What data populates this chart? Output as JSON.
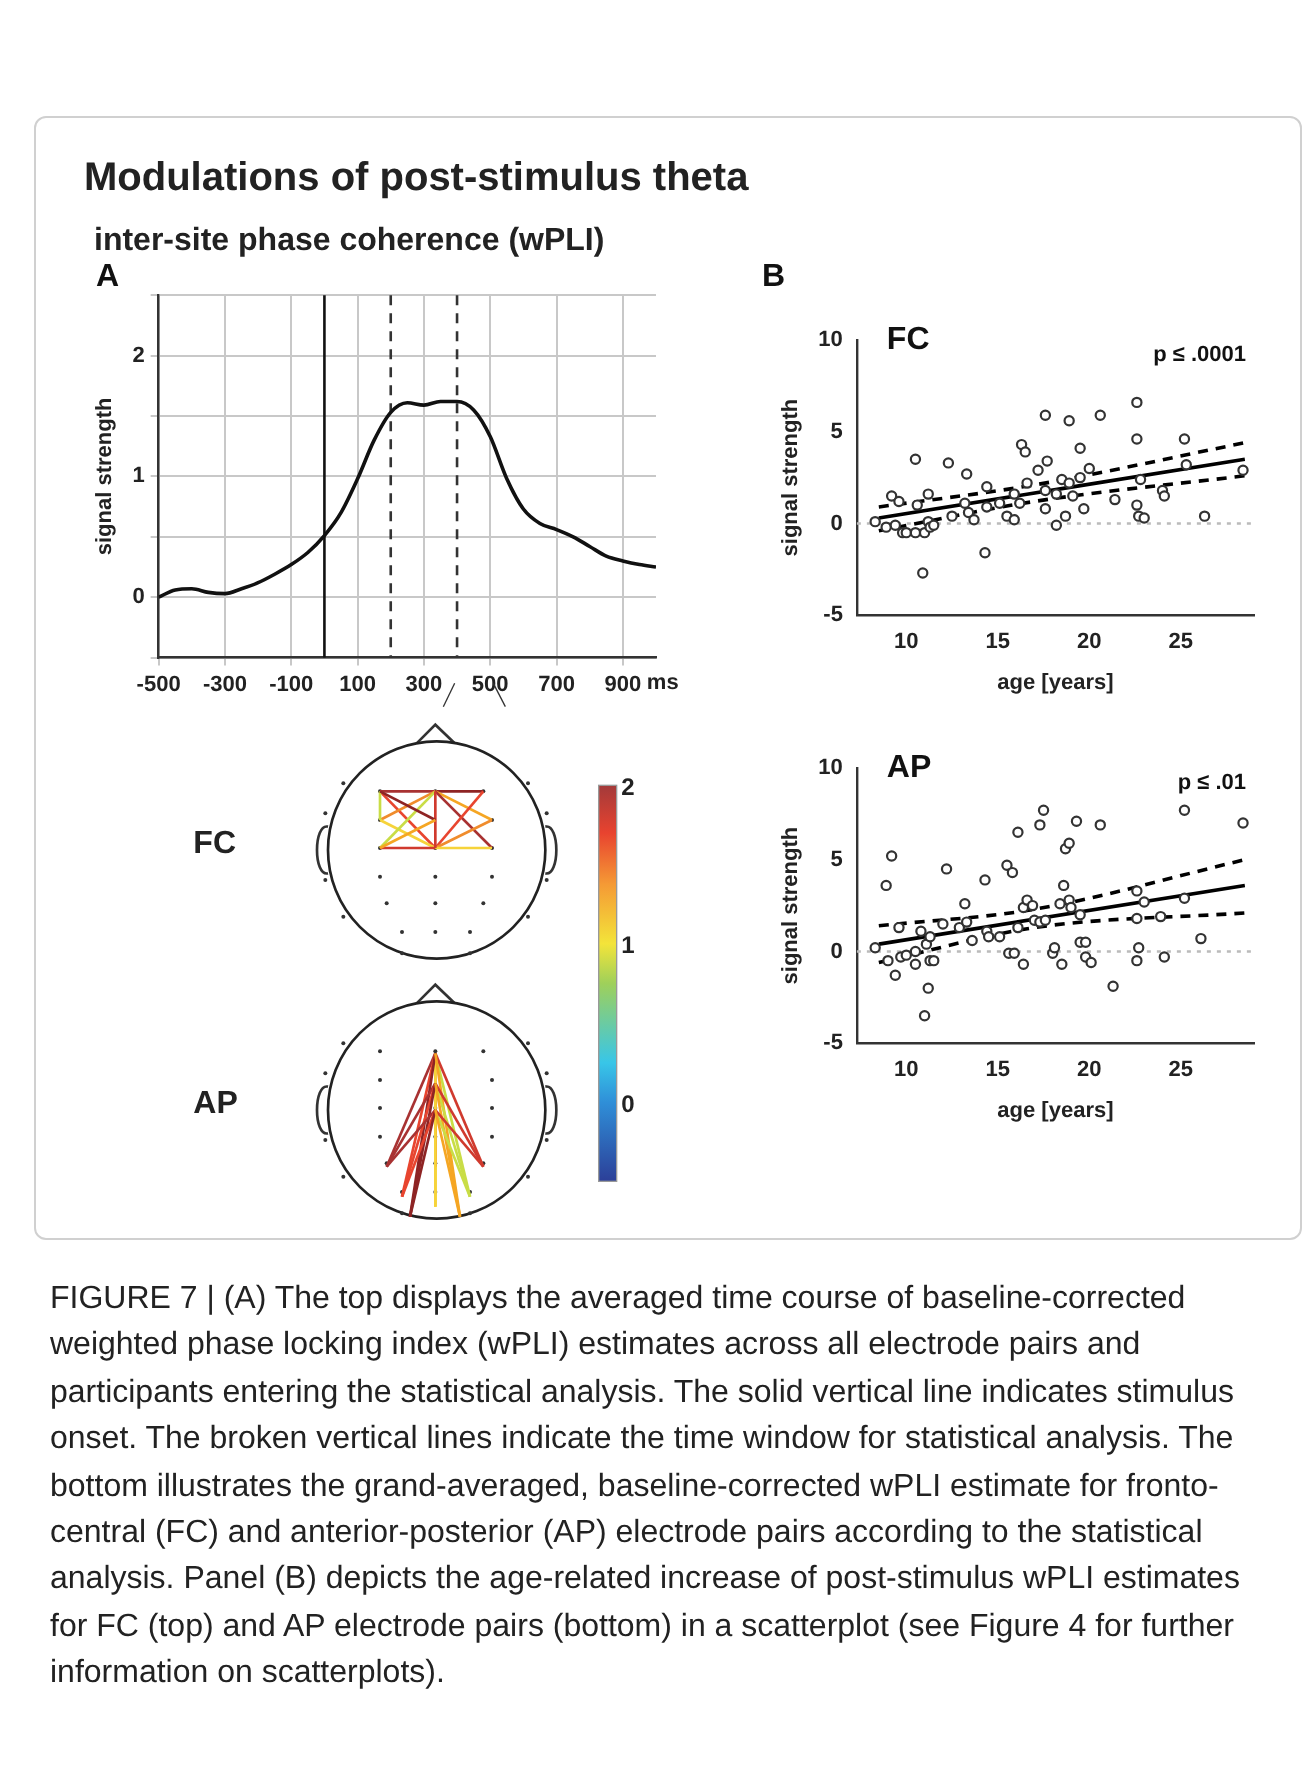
{
  "chart_data": [
    {
      "type": "line",
      "title": "Modulations of post-stimulus theta",
      "subtitle": "inter-site phase coherence (wPLI)",
      "annotations": [
        "A",
        "FIGURE 7 | (A) The top displays the averaged time course of baseline-corrected weighted phase locking index (wPLI) estimates across all electrode pairs and participants entering the statistical analysis. The solid vertical line indicates stimulus onset. The broken vertical lines indicate the time window for statistical analysis. The bottom illustrates the grand-averaged, baseline-corrected wPLI estimate for fronto-central (FC) and anterior-posterior (AP) electrode pairs according to the statistical analysis. Panel (B) depicts the age-related increase of post-stimulus wPLI estimates for FC (top) and AP electrode pairs (bottom) in a scatterplot (see Figure 4 for further information on scatterplots)."
      ],
      "xlabel": "ms",
      "ylabel": "signal strength",
      "x": [
        -500,
        -450,
        -400,
        -350,
        -300,
        -250,
        -200,
        -150,
        -100,
        -50,
        0,
        50,
        100,
        150,
        200,
        250,
        300,
        350,
        400,
        450,
        500,
        550,
        600,
        650,
        700,
        750,
        800,
        850,
        900,
        950,
        1000
      ],
      "values": [
        0,
        0.06,
        0.07,
        0.04,
        0.03,
        0.07,
        0.12,
        0.19,
        0.27,
        0.37,
        0.51,
        0.7,
        0.98,
        1.3,
        1.53,
        1.61,
        1.59,
        1.62,
        1.62,
        1.55,
        1.33,
        0.98,
        0.73,
        0.61,
        0.56,
        0.5,
        0.42,
        0.34,
        0.3,
        0.27,
        0.25
      ],
      "color": "#111111",
      "marker": "none",
      "line_style": "solid",
      "grid": true,
      "xlim": [
        -500,
        1000
      ],
      "xticks": [
        -500,
        -300,
        -100,
        100,
        300,
        500,
        700,
        900
      ],
      "ylim": [
        -0.5,
        2.5
      ],
      "yticks": [
        {
          "value": -0.5,
          "label": null
        },
        0,
        {
          "value": 0.5,
          "label": null
        },
        1,
        {
          "value": 1.5,
          "label": null
        },
        2,
        {
          "value": 2.5,
          "label": null
        }
      ],
      "ref_lines": [
        {
          "axis": "x",
          "value": 0,
          "color": "#111111",
          "line_style": "solid"
        },
        {
          "axis": "x",
          "value": 200,
          "color": "#333333",
          "line_style": "dashed"
        },
        {
          "axis": "x",
          "value": 400,
          "color": "#333333",
          "line_style": "dashed"
        }
      ]
    },
    {
      "type": "scatter",
      "title": "FC",
      "annotations": [
        "p ≤ .0001",
        "B"
      ],
      "xlabel": "age [years]",
      "ylabel": "signal strength",
      "xlim": [
        7.3,
        29
      ],
      "xticks": [
        10,
        15,
        20,
        25
      ],
      "ylim": [
        -5,
        10
      ],
      "yticks": [
        -5,
        0,
        5,
        10
      ],
      "ref_lines": [
        {
          "axis": "y",
          "value": 0,
          "color": "#bbbbbb",
          "line_style": "dotted"
        }
      ],
      "series": [
        {
          "type": "scatter",
          "color": "#333333",
          "marker": "circle",
          "x": [
            8.3,
            8.9,
            9.2,
            9.4,
            9.6,
            9.8,
            10.0,
            10.5,
            10.5,
            10.6,
            11.0,
            10.9,
            11.2,
            11.2,
            11.3,
            11.5,
            12.3,
            12.5,
            13.3,
            13.2,
            13.4,
            13.7,
            14.3,
            14.4,
            14.4,
            15.1,
            15.5,
            15.9,
            15.9,
            16.3,
            16.5,
            16.2,
            16.6,
            17.2,
            17.6,
            17.6,
            17.7,
            17.6,
            18.2,
            18.2,
            18.5,
            18.7,
            18.9,
            18.9,
            19.1,
            19.5,
            19.5,
            19.7,
            20.0,
            20.6,
            21.4,
            22.6,
            22.6,
            22.6,
            22.7,
            22.8,
            23.0,
            24.0,
            24.1,
            25.2,
            25.3,
            26.3,
            28.4
          ],
          "values": [
            0.1,
            -0.2,
            1.5,
            -0.1,
            1.2,
            -0.5,
            -0.5,
            3.5,
            -0.5,
            1.0,
            -0.5,
            -2.7,
            1.6,
            0.1,
            -0.2,
            -0.1,
            3.3,
            0.4,
            2.7,
            1.1,
            0.6,
            0.2,
            -1.6,
            2.0,
            0.9,
            1.1,
            0.4,
            0.2,
            1.6,
            4.3,
            3.9,
            1.1,
            2.2,
            2.9,
            1.8,
            5.9,
            3.4,
            0.8,
            1.6,
            -0.1,
            2.4,
            0.4,
            5.6,
            2.2,
            1.5,
            4.1,
            2.5,
            0.8,
            3.0,
            5.9,
            1.3,
            6.6,
            4.6,
            1.0,
            0.4,
            2.4,
            0.3,
            1.8,
            1.5,
            4.6,
            3.2,
            0.4,
            2.9
          ]
        },
        {
          "type": "line",
          "color": "#000000",
          "marker": "none",
          "line_style": "solid",
          "x": [
            8.5,
            28.5
          ],
          "values": [
            0.3,
            3.5
          ]
        },
        {
          "type": "line",
          "color": "#000000",
          "marker": "none",
          "line_style": "dashed",
          "x": [
            8.5,
            17,
            28.5
          ],
          "values": [
            0.9,
            2.1,
            4.4
          ]
        },
        {
          "type": "line",
          "color": "#000000",
          "marker": "none",
          "line_style": "dashed",
          "x": [
            8.5,
            17,
            28.5
          ],
          "values": [
            -0.4,
            1.2,
            2.6
          ]
        }
      ]
    },
    {
      "type": "scatter",
      "title": "AP",
      "annotations": [
        "p ≤ .01"
      ],
      "xlabel": "age [years]",
      "ylabel": "signal strength",
      "xlim": [
        7.3,
        29
      ],
      "xticks": [
        10,
        15,
        20,
        25
      ],
      "ylim": [
        -5,
        10
      ],
      "yticks": [
        -5,
        0,
        5,
        10
      ],
      "ref_lines": [
        {
          "axis": "y",
          "value": 0,
          "color": "#bbbbbb",
          "line_style": "dotted"
        }
      ],
      "series": [
        {
          "type": "scatter",
          "color": "#333333",
          "marker": "circle",
          "x": [
            8.3,
            8.9,
            9.0,
            9.2,
            9.4,
            9.6,
            9.7,
            10.0,
            10.5,
            10.5,
            10.8,
            11.0,
            11.2,
            11.1,
            11.3,
            11.3,
            11.5,
            12.0,
            12.2,
            12.9,
            13.2,
            13.3,
            13.6,
            14.3,
            14.4,
            14.5,
            15.1,
            15.5,
            15.8,
            15.6,
            15.9,
            16.1,
            16.1,
            16.4,
            16.4,
            16.6,
            16.9,
            17.0,
            17.3,
            17.3,
            17.5,
            17.6,
            18.0,
            18.1,
            18.4,
            18.5,
            18.6,
            18.7,
            18.9,
            18.9,
            19.0,
            19.3,
            19.5,
            19.5,
            19.8,
            19.8,
            20.1,
            20.6,
            21.3,
            22.6,
            22.6,
            22.6,
            22.7,
            23.0,
            23.9,
            24.1,
            25.2,
            25.2,
            26.1,
            28.4
          ],
          "values": [
            0.2,
            3.6,
            -0.5,
            5.2,
            -1.3,
            1.3,
            -0.3,
            -0.2,
            0.0,
            -0.7,
            1.1,
            -3.5,
            -2.0,
            0.4,
            -0.5,
            0.8,
            -0.5,
            1.5,
            4.5,
            1.3,
            2.6,
            1.6,
            0.6,
            3.9,
            1.1,
            0.8,
            0.8,
            4.7,
            4.3,
            -0.1,
            -0.1,
            6.5,
            1.3,
            2.4,
            -0.7,
            2.8,
            2.5,
            1.7,
            1.6,
            6.9,
            7.7,
            1.7,
            -0.1,
            0.2,
            2.6,
            -0.7,
            3.6,
            5.6,
            5.9,
            2.8,
            2.4,
            7.1,
            2.0,
            0.5,
            0.5,
            -0.3,
            -0.6,
            6.9,
            -1.9,
            3.3,
            1.8,
            -0.5,
            0.2,
            2.7,
            1.9,
            -0.3,
            7.7,
            2.9,
            0.7,
            7.0
          ]
        },
        {
          "type": "line",
          "color": "#000000",
          "marker": "none",
          "line_style": "solid",
          "x": [
            8.5,
            28.5
          ],
          "values": [
            0.4,
            3.6
          ]
        },
        {
          "type": "line",
          "color": "#000000",
          "marker": "none",
          "line_style": "dashed",
          "x": [
            8.5,
            17,
            28.5
          ],
          "values": [
            1.4,
            2.3,
            5.0
          ]
        },
        {
          "type": "line",
          "color": "#000000",
          "marker": "none",
          "line_style": "dashed",
          "x": [
            8.5,
            17,
            28.5
          ],
          "values": [
            -0.6,
            1.3,
            2.1
          ]
        }
      ]
    },
    {
      "type": "other",
      "annotations": [
        "FC",
        "AP",
        "2",
        "1",
        "0"
      ]
    }
  ]
}
